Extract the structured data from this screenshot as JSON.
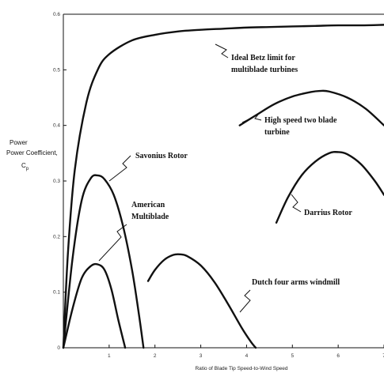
{
  "chart_data": {
    "type": "line",
    "xlabel": "Ratio of Blade Tip Speed-to-Wind Speed",
    "ylabel": "Power Coefficient,",
    "ylabel_symbol": "C",
    "ylabel_subscript": "p",
    "xlim": [
      0,
      7
    ],
    "ylim": [
      0,
      0.6
    ],
    "x_ticks": [
      "1",
      "2",
      "3",
      "4",
      "5",
      "6",
      "7"
    ],
    "y_ticks": [
      "0",
      "0.1",
      "0.2",
      "0.3",
      "0.4",
      "0.5",
      "0.6"
    ],
    "grid": false,
    "series": [
      {
        "name": "Ideal Betz limit for multiblade turbines",
        "x": [
          0,
          0.1,
          0.25,
          0.5,
          0.75,
          1.0,
          1.5,
          2.0,
          2.5,
          3.0,
          3.5,
          4.0,
          4.5,
          5.0,
          5.5,
          6.0,
          6.5,
          7.0
        ],
        "y": [
          0,
          0.17,
          0.32,
          0.44,
          0.5,
          0.528,
          0.553,
          0.563,
          0.569,
          0.572,
          0.574,
          0.576,
          0.577,
          0.578,
          0.579,
          0.58,
          0.58,
          0.581
        ]
      },
      {
        "name": "Savonius Rotor",
        "x": [
          0,
          0.2,
          0.4,
          0.6,
          0.75,
          0.9,
          1.1,
          1.3,
          1.5,
          1.65,
          1.75
        ],
        "y": [
          0,
          0.16,
          0.265,
          0.305,
          0.31,
          0.303,
          0.275,
          0.22,
          0.14,
          0.06,
          0
        ]
      },
      {
        "name": "American Multiblade",
        "x": [
          0,
          0.2,
          0.4,
          0.6,
          0.75,
          0.9,
          1.05,
          1.2,
          1.35
        ],
        "y": [
          0,
          0.07,
          0.125,
          0.147,
          0.15,
          0.14,
          0.105,
          0.05,
          0
        ]
      },
      {
        "name": "Dutch four arms windmill",
        "x": [
          1.85,
          2.0,
          2.2,
          2.4,
          2.55,
          2.7,
          3.0,
          3.3,
          3.6,
          3.9,
          4.1,
          4.2
        ],
        "y": [
          0.12,
          0.14,
          0.158,
          0.167,
          0.168,
          0.165,
          0.148,
          0.118,
          0.078,
          0.035,
          0.01,
          0
        ]
      },
      {
        "name": "High speed two blade turbine",
        "x": [
          3.85,
          4.2,
          4.6,
          5.0,
          5.4,
          5.6,
          5.8,
          6.2,
          6.6,
          7.0
        ],
        "y": [
          0.4,
          0.418,
          0.438,
          0.452,
          0.46,
          0.462,
          0.461,
          0.45,
          0.43,
          0.4
        ]
      },
      {
        "name": "Darrius Rotor",
        "x": [
          4.65,
          4.9,
          5.2,
          5.5,
          5.8,
          6.0,
          6.2,
          6.5,
          6.8,
          7.0
        ],
        "y": [
          0.225,
          0.27,
          0.31,
          0.335,
          0.35,
          0.352,
          0.348,
          0.33,
          0.3,
          0.275
        ]
      }
    ],
    "annotations": [
      {
        "series": 0,
        "lines": [
          "Ideal Betz limit for",
          "multiblade turbines"
        ]
      },
      {
        "series": 1,
        "lines": [
          "Savonius Rotor"
        ]
      },
      {
        "series": 2,
        "lines": [
          "American",
          "Multiblade"
        ]
      },
      {
        "series": 3,
        "lines": [
          "Dutch four arms windmill"
        ]
      },
      {
        "series": 4,
        "lines": [
          "High speed two blade",
          "turbine"
        ]
      },
      {
        "series": 5,
        "lines": [
          "Darrius Rotor"
        ]
      }
    ]
  }
}
